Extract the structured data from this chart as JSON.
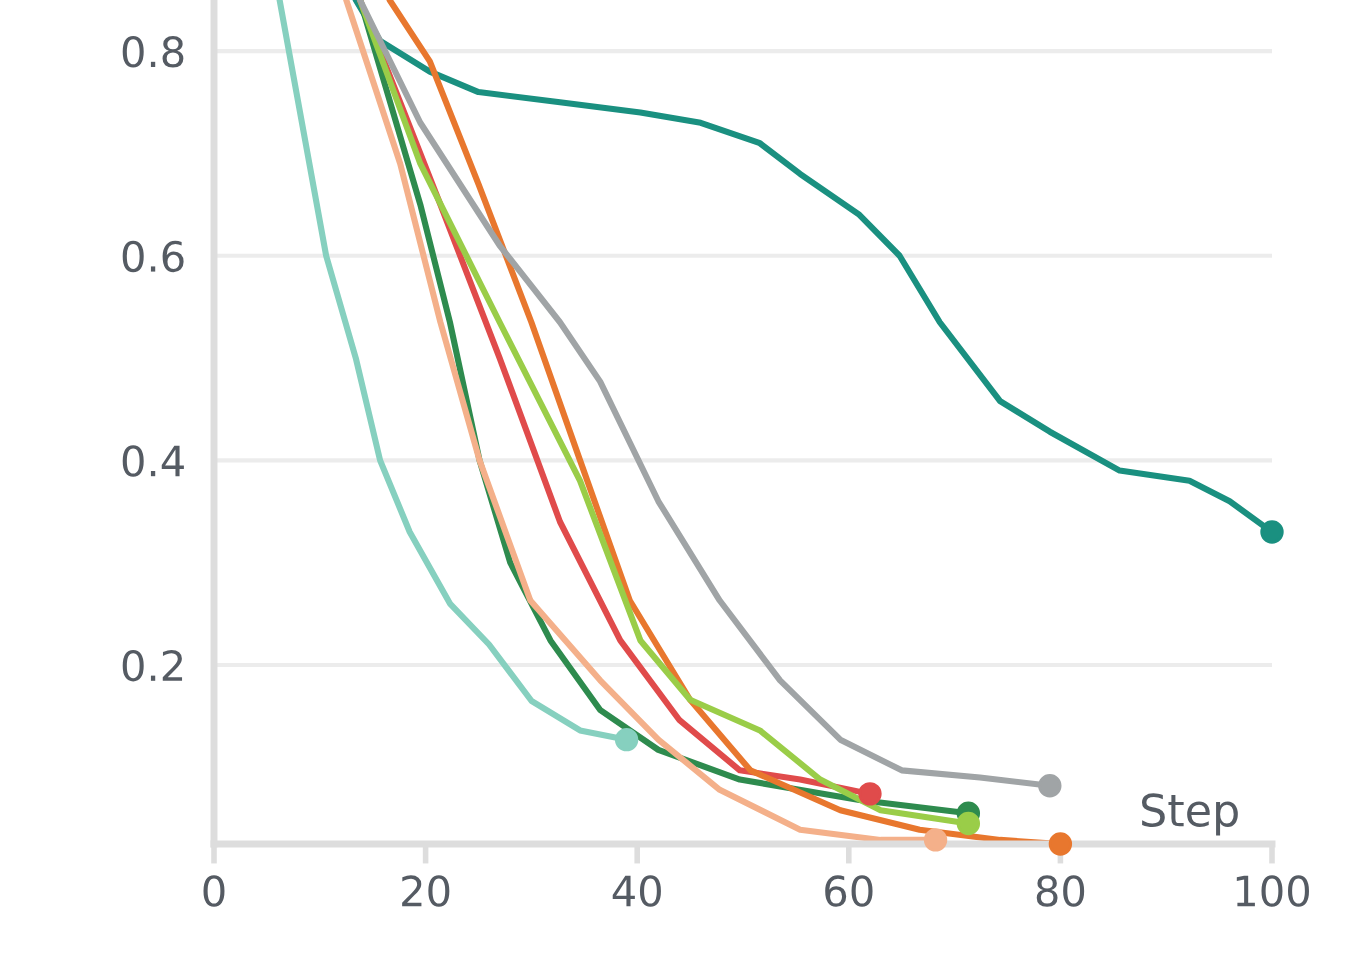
{
  "chart_data": {
    "type": "line",
    "xlabel": "Step",
    "xlim": [
      0,
      100
    ],
    "ylim": [
      0.025,
      0.85
    ],
    "xticks": [
      0,
      20,
      40,
      60,
      80,
      100
    ],
    "yticks": [
      0.2,
      0.4,
      0.6,
      0.8
    ],
    "grid": "y",
    "series": [
      {
        "color": "#86d0bf",
        "x": [
          6.2,
          10.6,
          13.4,
          15.7,
          18.5,
          22.3,
          26,
          30,
          34.6,
          39
        ],
        "values": [
          0.85,
          0.6,
          0.5,
          0.4,
          0.33,
          0.26,
          0.22,
          0.165,
          0.136,
          0.127
        ]
      },
      {
        "color": "#1a9080",
        "x": [
          13.4,
          15.7,
          20.4,
          25,
          32.7,
          40.3,
          46,
          51.6,
          55.4,
          61,
          64.8,
          68.6,
          74.3,
          79,
          85.6,
          92.2,
          96,
          100
        ],
        "values": [
          0.85,
          0.81,
          0.78,
          0.76,
          0.75,
          0.74,
          0.73,
          0.71,
          0.68,
          0.64,
          0.6,
          0.535,
          0.458,
          0.428,
          0.39,
          0.38,
          0.36,
          0.33
        ]
      },
      {
        "color": "#2e8b4e",
        "x": [
          13.8,
          19.5,
          22.3,
          25.1,
          28,
          31.8,
          36.5,
          42,
          49.7,
          61,
          71.3
        ],
        "values": [
          0.85,
          0.65,
          0.535,
          0.4,
          0.3,
          0.224,
          0.156,
          0.117,
          0.088,
          0.068,
          0.055
        ]
      },
      {
        "color": "#f4b08a",
        "x": [
          12.5,
          17.6,
          21.4,
          25.1,
          29.9,
          36.5,
          42,
          47.8,
          55.4,
          63,
          68.2
        ],
        "values": [
          0.85,
          0.69,
          0.535,
          0.4,
          0.263,
          0.185,
          0.127,
          0.078,
          0.039,
          0.029,
          0.029
        ]
      },
      {
        "color": "#e04b4b",
        "x": [
          13.8,
          21.4,
          27,
          32.7,
          38.4,
          44,
          49.7,
          55.4,
          62
        ],
        "values": [
          0.85,
          0.65,
          0.5,
          0.34,
          0.224,
          0.146,
          0.097,
          0.088,
          0.074
        ]
      },
      {
        "color": "#e8772e",
        "x": [
          16.6,
          20.4,
          25,
          30,
          34.6,
          39.3,
          45,
          50.7,
          59.2,
          66.7,
          74.3,
          80
        ],
        "values": [
          0.85,
          0.79,
          0.67,
          0.535,
          0.4,
          0.263,
          0.166,
          0.097,
          0.058,
          0.039,
          0.029,
          0.025
        ]
      },
      {
        "color": "#9acd48",
        "x": [
          13.8,
          19.5,
          27,
          34.6,
          40.3,
          45,
          51.6,
          57.3,
          63,
          71.3
        ],
        "values": [
          0.85,
          0.69,
          0.535,
          0.38,
          0.224,
          0.166,
          0.136,
          0.088,
          0.058,
          0.045
        ]
      },
      {
        "color": "#a0a4a6",
        "x": [
          13.8,
          19.5,
          27,
          32.7,
          36.5,
          42,
          47.8,
          53.5,
          59.2,
          65,
          72.4,
          79
        ],
        "values": [
          0.85,
          0.73,
          0.61,
          0.535,
          0.477,
          0.36,
          0.263,
          0.185,
          0.127,
          0.097,
          0.09,
          0.082
        ]
      },
      {
        "type": "scatter",
        "color": "#86d0bf",
        "x": [
          39
        ],
        "values": [
          0.127
        ]
      },
      {
        "type": "scatter",
        "color": "#1a9080",
        "x": [
          100
        ],
        "values": [
          0.33
        ]
      },
      {
        "type": "scatter",
        "color": "#2e8b4e",
        "x": [
          71.3
        ],
        "values": [
          0.055
        ]
      },
      {
        "type": "scatter",
        "color": "#f4b08a",
        "x": [
          68.2
        ],
        "values": [
          0.029
        ]
      },
      {
        "type": "scatter",
        "color": "#e04b4b",
        "x": [
          62
        ],
        "values": [
          0.074
        ]
      },
      {
        "type": "scatter",
        "color": "#e8772e",
        "x": [
          80
        ],
        "values": [
          0.025
        ]
      },
      {
        "type": "scatter",
        "color": "#9acd48",
        "x": [
          71.3
        ],
        "values": [
          0.045
        ]
      },
      {
        "type": "scatter",
        "color": "#a0a4a6",
        "x": [
          79
        ],
        "values": [
          0.082
        ]
      }
    ]
  }
}
